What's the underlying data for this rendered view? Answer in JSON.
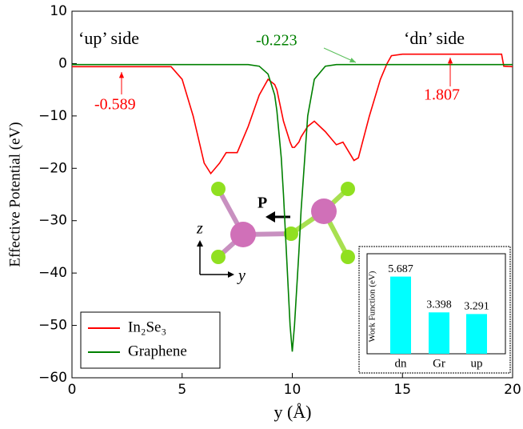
{
  "chart_data": [
    {
      "type": "line",
      "x": [
        0,
        4.5,
        5,
        5.5,
        6,
        6.3,
        6.7,
        7,
        7.5,
        8,
        8.5,
        8.9,
        9.2,
        9.3,
        9.5,
        9.6,
        9.9,
        10,
        10.1,
        10.3,
        10.4,
        10.7,
        11,
        11.5,
        12,
        12.3,
        12.8,
        13,
        13.5,
        14,
        14.3,
        14.5,
        15,
        19.5,
        19.6,
        20
      ],
      "series": [
        {
          "name": "In₂Se₃",
          "color": "#ff0000",
          "values": [
            -0.6,
            -0.6,
            -3,
            -10,
            -19,
            -21,
            -19,
            -17,
            -17,
            -12,
            -6,
            -3,
            -4,
            -5,
            -9,
            -11,
            -15,
            -16,
            -16,
            -15,
            -14,
            -12,
            -11,
            -13,
            -15.5,
            -15,
            -18.5,
            -18,
            -10,
            -3,
            0,
            1.5,
            1.8,
            1.8,
            -0.5,
            -0.6
          ]
        },
        {
          "name": "Graphene",
          "color": "#008000",
          "values": [
            -0.2,
            -0.2,
            -0.2,
            -0.2,
            -0.2,
            -0.2,
            -0.2,
            -0.2,
            -0.2,
            -0.2,
            -0.5,
            -2,
            -6,
            -9,
            -18,
            -25,
            -50,
            -55,
            -50,
            -36,
            -28,
            -10,
            -3,
            -0.5,
            -0.2,
            -0.2,
            -0.2,
            -0.2,
            -0.2,
            -0.2,
            -0.2,
            -0.2,
            -0.2,
            -0.2,
            -0.2,
            -0.2
          ]
        }
      ],
      "xlabel": "y (Å)",
      "ylabel": "Effective Potential (eV)",
      "xlim": [
        0,
        20
      ],
      "ylim": [
        -60,
        10
      ],
      "xticks": [
        0,
        5,
        10,
        15,
        20
      ],
      "yticks": [
        {
          "value": -60,
          "label": "−60"
        },
        {
          "value": -50,
          "label": "−50"
        },
        {
          "value": -40,
          "label": "−40"
        },
        {
          "value": -30,
          "label": "−30"
        },
        {
          "value": -20,
          "label": "−20"
        },
        {
          "value": -10,
          "label": "−10"
        },
        0,
        10
      ],
      "legend": "lower left",
      "annotations": [
        "‘up’ side",
        "‘dn’ side",
        "-0.223",
        "-0.589",
        "1.807"
      ],
      "diagram_labels": [
        "P",
        "z",
        "y"
      ]
    },
    {
      "type": "bar",
      "ylabel": "Work Function (eV)",
      "categories": [
        "dn",
        "Gr",
        "up"
      ],
      "values": [
        5.687,
        3.398,
        3.291
      ],
      "color": "#00ffff",
      "ylim": [
        0.75,
        7.15
      ]
    }
  ]
}
